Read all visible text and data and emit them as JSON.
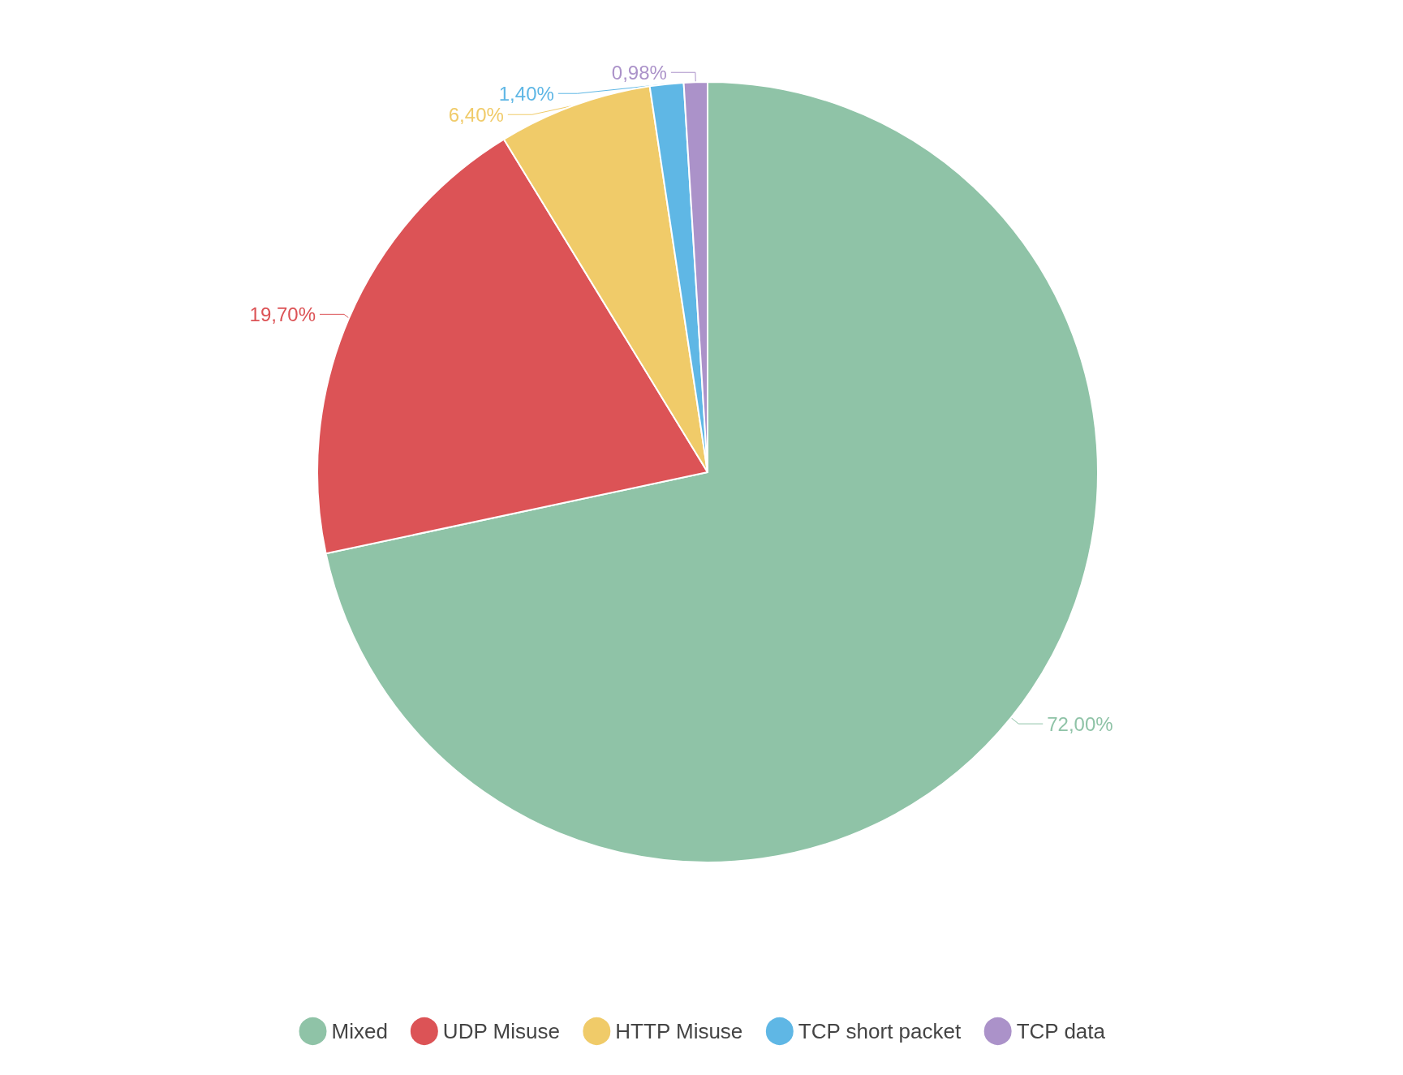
{
  "chart_data": {
    "type": "pie",
    "categories": [
      "Mixed",
      "UDP Misuse",
      "HTTP Misuse",
      "TCP short packet",
      "TCP data"
    ],
    "values": [
      72.0,
      19.7,
      6.4,
      1.4,
      0.98
    ],
    "value_labels": [
      "72,00%",
      "19,70%",
      "6,40%",
      "1,40%",
      "0,98%"
    ],
    "colors": [
      "#8fc3a7",
      "#dc5356",
      "#f0cb69",
      "#5fb7e5",
      "#ab92c9"
    ],
    "legend": "bottom"
  }
}
